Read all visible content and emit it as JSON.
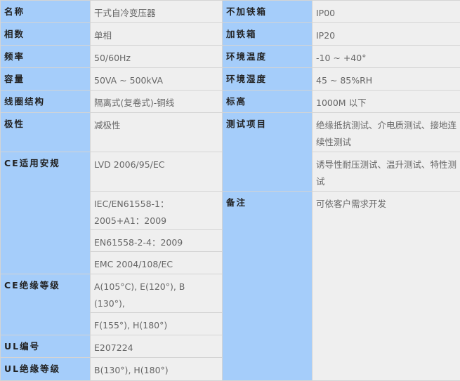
{
  "colors": {
    "label_bg": "#a5cdfa",
    "value_bg": "#efefef"
  },
  "left": [
    {
      "label": "名称",
      "values": [
        "干式自冷变压器"
      ]
    },
    {
      "label": "相数",
      "values": [
        "单相"
      ]
    },
    {
      "label": "频率",
      "values": [
        "50/60Hz"
      ]
    },
    {
      "label": "容量",
      "values": [
        "50VA ~ 500kVA"
      ]
    },
    {
      "label": "线圈结构",
      "values": [
        "隔离式(复卷式)-铜线"
      ]
    },
    {
      "label": "极性",
      "values": [
        "减极性"
      ]
    },
    {
      "label": "CE适用安规",
      "values": [
        "LVD 2006/95/EC",
        "IEC/EN61558-1：2005+A1：2009",
        "EN61558-2-4：2009",
        "EMC 2004/108/EC"
      ]
    },
    {
      "label": "CE绝缘等级",
      "values": [
        "A(105°C), E(120°), B (130°),",
        "F(155°), H(180°)"
      ]
    },
    {
      "label": "UL编号",
      "values": [
        "E207224"
      ]
    },
    {
      "label": "UL绝缘等级",
      "values": [
        "B(130°), H(180°)"
      ]
    }
  ],
  "right": [
    {
      "label": "不加铁箱",
      "values": [
        "IP00"
      ]
    },
    {
      "label": "加铁箱",
      "values": [
        "IP20"
      ]
    },
    {
      "label": "环境温度",
      "values": [
        "-10 ~ +40°"
      ]
    },
    {
      "label": "环境湿度",
      "values": [
        "45 ~ 85%RH"
      ]
    },
    {
      "label": "标高",
      "values": [
        "1000M 以下"
      ]
    },
    {
      "label": "测试项目",
      "values": [
        "绝缘抵抗测试、介电质测试、接地连续性测试",
        "诱导性耐压测试、温升测试、特性测试"
      ]
    },
    {
      "label": "备注",
      "values": [
        "可依客户需求开发"
      ]
    }
  ]
}
